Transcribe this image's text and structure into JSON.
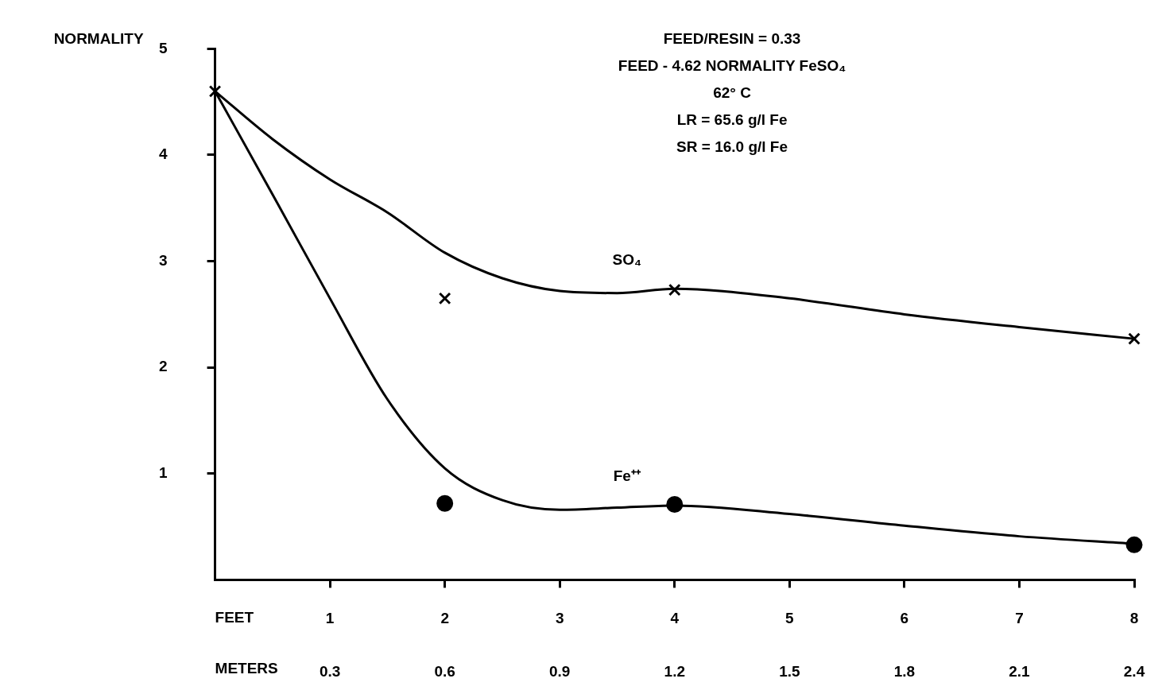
{
  "chart_data": {
    "type": "line",
    "ylabel": "NORMALITY",
    "xlabel": "FEET",
    "x2label": "METERS",
    "xlim": [
      0,
      8
    ],
    "xticks": [
      1,
      2,
      3,
      4,
      5,
      6,
      7,
      8
    ],
    "ylim": [
      0,
      5
    ],
    "yticks": [
      1,
      2,
      3,
      4,
      5
    ],
    "x2lim": [
      0,
      2.4
    ],
    "x2ticks": [
      0.3,
      0.6,
      0.9,
      1.2,
      1.5,
      1.8,
      2.1,
      2.4
    ],
    "grid": false,
    "legend": false,
    "annotations": [
      "FEED/RESIN = 0.33",
      "FEED - 4.62 NORMALITY FeSO₄",
      "62° C",
      "LR = 65.6 g/l Fe",
      "SR = 16.0 g/l Fe"
    ],
    "series": [
      {
        "name": "SO₄",
        "type": "line",
        "color": "#000000",
        "marker": "none",
        "x": [
          0,
          0.5,
          1,
          1.5,
          2,
          2.5,
          3,
          3.5,
          4,
          5,
          6,
          7,
          8
        ],
        "values": [
          4.6,
          4.15,
          3.77,
          3.46,
          3.08,
          2.84,
          2.72,
          2.7,
          2.74,
          2.65,
          2.5,
          2.38,
          2.27
        ]
      },
      {
        "name": "Fe⁺⁺",
        "type": "line",
        "color": "#000000",
        "marker": "none",
        "x": [
          0,
          0.5,
          1,
          1.5,
          2,
          2.5,
          3,
          3.5,
          4,
          5,
          6,
          7,
          8
        ],
        "values": [
          4.6,
          3.63,
          2.65,
          1.7,
          1.05,
          0.75,
          0.66,
          0.68,
          0.7,
          0.62,
          0.51,
          0.41,
          0.34
        ]
      },
      {
        "type": "scatter",
        "color": "#000000",
        "marker": "cross",
        "x": [
          0,
          2,
          4,
          8
        ],
        "values": [
          4.6,
          2.65,
          2.73,
          2.27
        ]
      },
      {
        "type": "scatter",
        "color": "#000000",
        "marker": "circle",
        "x": [
          2,
          4,
          8
        ],
        "values": [
          0.72,
          0.71,
          0.33
        ]
      }
    ]
  }
}
